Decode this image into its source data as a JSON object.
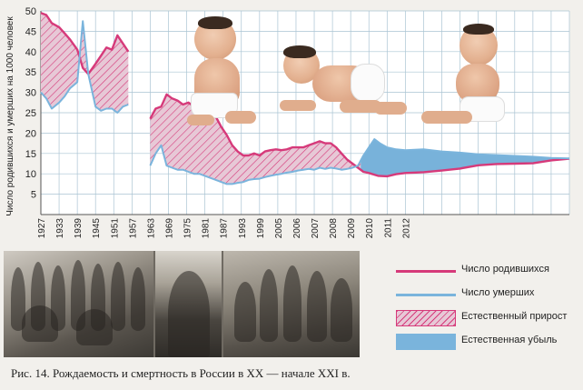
{
  "chart_data": {
    "type": "line",
    "ylabel": "Число родившихся и умерших на 1000 человек",
    "ylim": [
      0,
      50
    ],
    "yticks": [
      5,
      10,
      15,
      20,
      25,
      30,
      35,
      40,
      45,
      50
    ],
    "x_tick_labels": [
      "1927",
      "1933",
      "1939",
      "1945",
      "1951",
      "1957",
      "1963",
      "1969",
      "1975",
      "1981",
      "1987",
      "1993",
      "1999",
      "2005",
      "2006",
      "2007",
      "2008",
      "2009",
      "2010",
      "2011",
      "2012"
    ],
    "grid": true,
    "series": [
      {
        "name": "Число родившихся",
        "color": "#d63a7a",
        "segments": [
          [
            [
              0,
              49.5
            ],
            [
              0.3,
              49
            ],
            [
              0.6,
              47
            ],
            [
              1.0,
              46
            ],
            [
              1.3,
              44.5
            ],
            [
              1.6,
              43
            ],
            [
              2.0,
              40.5
            ],
            [
              2.3,
              36
            ],
            [
              2.6,
              34.5
            ],
            [
              3.0,
              37
            ],
            [
              3.3,
              39
            ],
            [
              3.6,
              41
            ],
            [
              3.9,
              40.5
            ],
            [
              4.2,
              44
            ],
            [
              4.5,
              42
            ],
            [
              4.8,
              40
            ]
          ],
          [
            [
              6.0,
              23.5
            ],
            [
              6.3,
              26
            ],
            [
              6.6,
              26.5
            ],
            [
              6.9,
              29.5
            ],
            [
              7.2,
              28.5
            ],
            [
              7.5,
              28
            ],
            [
              7.8,
              27
            ],
            [
              8.1,
              27.5
            ],
            [
              8.4,
              26.5
            ],
            [
              8.7,
              25.5
            ],
            [
              9.0,
              25
            ],
            [
              9.3,
              24.5
            ],
            [
              9.6,
              24
            ],
            [
              9.9,
              21.5
            ],
            [
              10.2,
              19.5
            ],
            [
              10.5,
              17
            ],
            [
              10.8,
              15.5
            ],
            [
              11.1,
              14.5
            ],
            [
              11.4,
              14.5
            ],
            [
              11.7,
              15
            ],
            [
              12.0,
              14.5
            ],
            [
              12.3,
              15.5
            ],
            [
              12.6,
              15.8
            ],
            [
              12.9,
              16
            ],
            [
              13.2,
              15.8
            ],
            [
              13.5,
              16
            ],
            [
              13.8,
              16.5
            ],
            [
              14.1,
              16.5
            ],
            [
              14.4,
              16.5
            ],
            [
              14.7,
              17
            ],
            [
              15.0,
              17.5
            ],
            [
              15.3,
              18
            ],
            [
              15.6,
              17.5
            ],
            [
              15.9,
              17.5
            ],
            [
              16.2,
              16.5
            ],
            [
              16.5,
              15
            ],
            [
              16.8,
              13.5
            ],
            [
              17.1,
              12.5
            ],
            [
              17.4,
              11.5
            ],
            [
              17.7,
              10.5
            ],
            [
              18.0,
              10.2
            ],
            [
              18.5,
              9.5
            ],
            [
              19.0,
              9.4
            ],
            [
              19.5,
              9.9
            ],
            [
              20.0,
              10.2
            ],
            [
              21,
              10.4
            ],
            [
              22,
              10.8
            ],
            [
              23,
              11.3
            ],
            [
              24,
              12.1
            ],
            [
              25,
              12.4
            ],
            [
              26,
              12.5
            ],
            [
              27,
              12.6
            ],
            [
              28,
              13.3
            ],
            [
              29,
              13.7
            ]
          ]
        ]
      },
      {
        "name": "Число умерших",
        "color": "#7ab4dc",
        "segments": [
          [
            [
              0,
              30
            ],
            [
              0.3,
              28.5
            ],
            [
              0.6,
              26
            ],
            [
              1.0,
              27.5
            ],
            [
              1.3,
              29
            ],
            [
              1.6,
              31
            ],
            [
              2.0,
              32.5
            ],
            [
              2.3,
              47.5
            ],
            [
              2.6,
              34.5
            ],
            [
              3.0,
              26.5
            ],
            [
              3.3,
              25.5
            ],
            [
              3.6,
              26
            ],
            [
              3.9,
              26
            ],
            [
              4.2,
              25
            ],
            [
              4.5,
              26.5
            ],
            [
              4.8,
              27
            ]
          ],
          [
            [
              6.0,
              12
            ],
            [
              6.3,
              15
            ],
            [
              6.6,
              17
            ],
            [
              6.9,
              12
            ],
            [
              7.2,
              11.5
            ],
            [
              7.5,
              11
            ],
            [
              7.8,
              11
            ],
            [
              8.1,
              10.5
            ],
            [
              8.4,
              10
            ],
            [
              8.7,
              10
            ],
            [
              9.0,
              9.5
            ],
            [
              9.3,
              9
            ],
            [
              9.6,
              8.5
            ],
            [
              9.9,
              8
            ],
            [
              10.2,
              7.5
            ],
            [
              10.5,
              7.5
            ],
            [
              10.8,
              7.8
            ],
            [
              11.1,
              8
            ],
            [
              11.4,
              8.5
            ],
            [
              11.7,
              8.7
            ],
            [
              12.0,
              8.8
            ],
            [
              12.3,
              9.2
            ],
            [
              12.6,
              9.5
            ],
            [
              12.9,
              9.8
            ],
            [
              13.2,
              10
            ],
            [
              13.5,
              10.3
            ],
            [
              13.8,
              10.5
            ],
            [
              14.1,
              10.8
            ],
            [
              14.4,
              11
            ],
            [
              14.7,
              11.2
            ],
            [
              15.0,
              11
            ],
            [
              15.3,
              11.5
            ],
            [
              15.6,
              11.2
            ],
            [
              15.9,
              11.5
            ],
            [
              16.2,
              11.3
            ],
            [
              16.5,
              11
            ],
            [
              16.8,
              11.2
            ],
            [
              17.1,
              11.5
            ],
            [
              17.4,
              12
            ],
            [
              17.7,
              14.5
            ],
            [
              18.0,
              16.5
            ],
            [
              18.3,
              18.5
            ],
            [
              18.6,
              17.5
            ],
            [
              19.0,
              16.5
            ],
            [
              19.5,
              16
            ],
            [
              20.0,
              15.8
            ],
            [
              21,
              16
            ],
            [
              22,
              15.5
            ],
            [
              23,
              15.2
            ],
            [
              24,
              14.8
            ],
            [
              25,
              14.6
            ],
            [
              26,
              14.4
            ],
            [
              27,
              14.2
            ],
            [
              28,
              13.9
            ],
            [
              29,
              13.8
            ]
          ]
        ]
      }
    ],
    "legend": [
      {
        "label": "Число родившихся",
        "kind": "line",
        "color": "#d63a7a"
      },
      {
        "label": "Число умерших",
        "kind": "line",
        "color": "#7ab4dc"
      },
      {
        "label": "Естественный прирост",
        "kind": "hatch",
        "color": "#d63a7a"
      },
      {
        "label": "Естественная убыль",
        "kind": "fill",
        "color": "#7ab4dc"
      }
    ],
    "caption": "Рис. 14. Рождаемость и смертность в России в XX — начале XXI в.",
    "colors": {
      "growth_fill": "#e7c8d6",
      "decline_fill": "#78b2da",
      "grid": "#aac4d3"
    }
  }
}
